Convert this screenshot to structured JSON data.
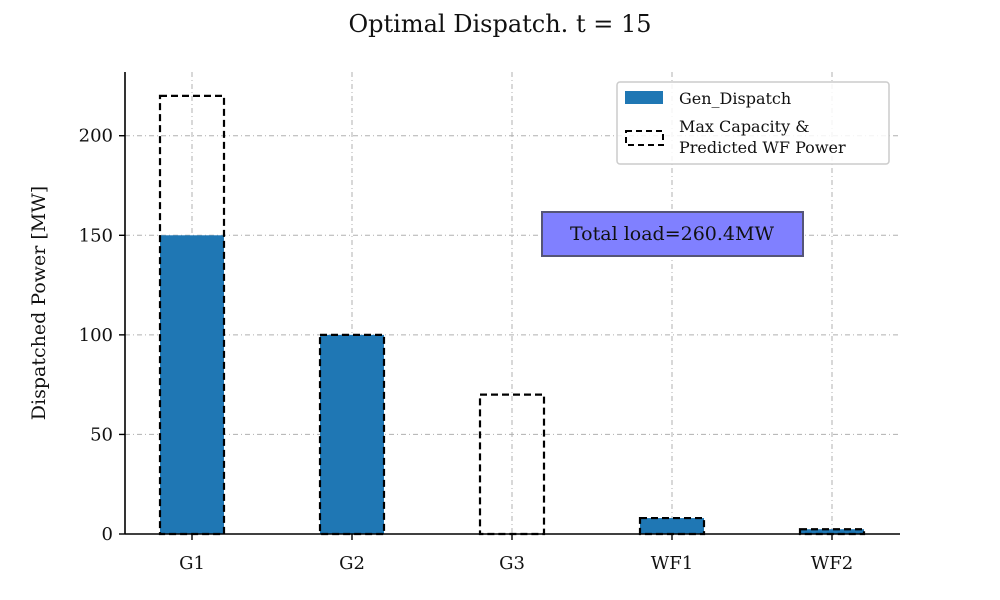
{
  "chart_data": {
    "type": "bar",
    "title": "Optimal Dispatch. t = 15",
    "xlabel": "",
    "ylabel": "Dispatched Power [MW]",
    "categories": [
      "G1",
      "G2",
      "G3",
      "WF1",
      "WF2"
    ],
    "series": [
      {
        "name": "Gen_Dispatch",
        "style": "filled",
        "color": "#1f77b4",
        "values": [
          150,
          100,
          0,
          8,
          2.4
        ]
      },
      {
        "name": "Max Capacity & Predicted WF Power",
        "style": "dashed-outline",
        "color": "#000000",
        "values": [
          220,
          100,
          70,
          8,
          2.4
        ]
      }
    ],
    "ylim": [
      0,
      232
    ],
    "yticks": [
      0,
      50,
      100,
      150,
      200
    ],
    "grid": true,
    "legend_position": "top-right",
    "annotation": {
      "text": "Total load=260.4MW",
      "color": "#8080ff",
      "position_x_category": "G3-WF1",
      "y_value": 150
    }
  }
}
